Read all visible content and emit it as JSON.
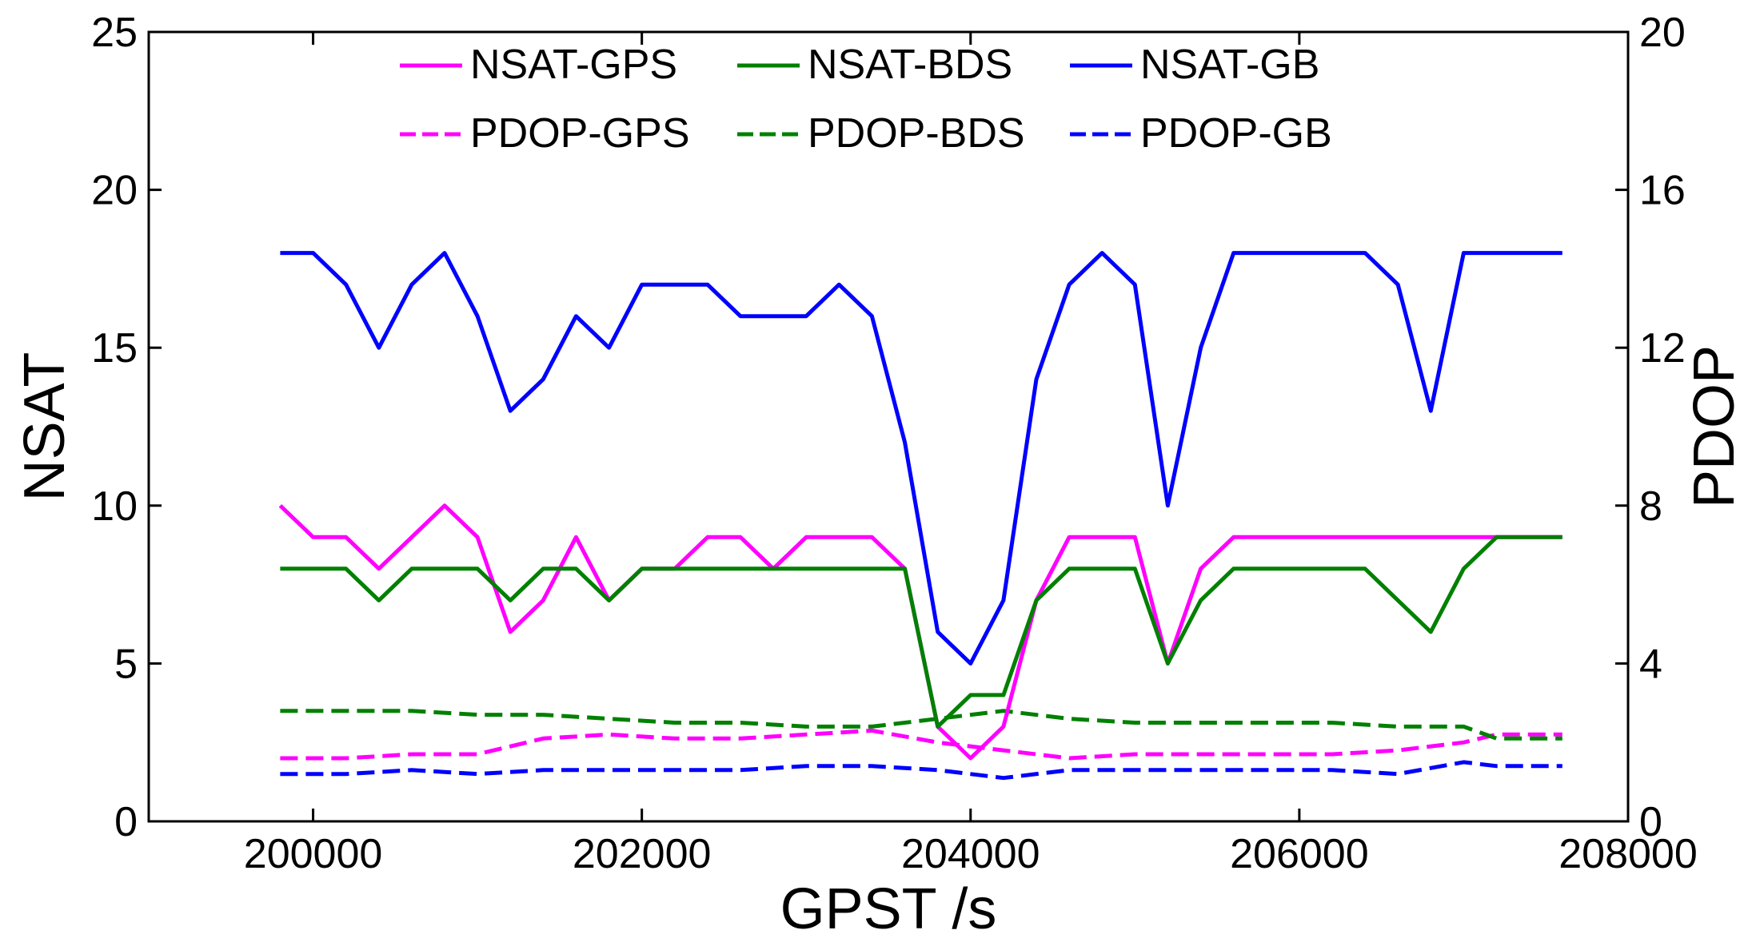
{
  "chart_data": {
    "type": "line",
    "xlabel": "GPST /s",
    "ylabel_left": "NSAT",
    "ylabel_right": "PDOP",
    "xlim": [
      199000,
      208000
    ],
    "ylim_left": [
      0,
      25
    ],
    "ylim_right": [
      0,
      20
    ],
    "x_ticks": [
      200000,
      202000,
      204000,
      206000,
      208000
    ],
    "y_left_ticks": [
      0,
      5,
      10,
      15,
      20,
      25
    ],
    "y_right_ticks": [
      0,
      4,
      8,
      12,
      16,
      20
    ],
    "grid": false,
    "legend_position": "top-center",
    "series": [
      {
        "name": "NSAT-GPS",
        "axis": "left",
        "style": "solid",
        "color": "#ff00ff",
        "x": [
          199800,
          200000,
          200200,
          200400,
          200600,
          200800,
          201000,
          201200,
          201400,
          201600,
          201800,
          202000,
          202200,
          202400,
          202600,
          202800,
          203000,
          203200,
          203400,
          203600,
          203800,
          204000,
          204200,
          204400,
          204600,
          204800,
          205000,
          205200,
          205400,
          205600,
          205800,
          206000,
          206200,
          206400,
          206600,
          206800,
          207000,
          207200,
          207400,
          207600
        ],
        "values": [
          10,
          9,
          9,
          8,
          9,
          10,
          9,
          6,
          7,
          9,
          7,
          8,
          8,
          9,
          9,
          8,
          9,
          9,
          9,
          8,
          3,
          2,
          3,
          7,
          9,
          9,
          9,
          5,
          8,
          9,
          9,
          9,
          9,
          9,
          9,
          9,
          9,
          9,
          9,
          9
        ]
      },
      {
        "name": "NSAT-BDS",
        "axis": "left",
        "style": "solid",
        "color": "#008000",
        "x": [
          199800,
          200000,
          200200,
          200400,
          200600,
          200800,
          201000,
          201200,
          201400,
          201600,
          201800,
          202000,
          202200,
          202400,
          202600,
          202800,
          203000,
          203200,
          203400,
          203600,
          203800,
          204000,
          204200,
          204400,
          204600,
          204800,
          205000,
          205200,
          205400,
          205600,
          205800,
          206000,
          206200,
          206400,
          206600,
          206800,
          207000,
          207200,
          207400,
          207600
        ],
        "values": [
          8,
          8,
          8,
          7,
          8,
          8,
          8,
          7,
          8,
          8,
          7,
          8,
          8,
          8,
          8,
          8,
          8,
          8,
          8,
          8,
          3,
          4,
          4,
          7,
          8,
          8,
          8,
          5,
          7,
          8,
          8,
          8,
          8,
          8,
          7,
          6,
          8,
          9,
          9,
          9
        ]
      },
      {
        "name": "NSAT-GB",
        "axis": "left",
        "style": "solid",
        "color": "#0000ff",
        "x": [
          199800,
          200000,
          200200,
          200400,
          200600,
          200800,
          201000,
          201200,
          201400,
          201600,
          201800,
          202000,
          202200,
          202400,
          202600,
          202800,
          203000,
          203200,
          203400,
          203600,
          203800,
          204000,
          204200,
          204400,
          204600,
          204800,
          205000,
          205200,
          205400,
          205600,
          205800,
          206000,
          206200,
          206400,
          206600,
          206800,
          207000,
          207200,
          207400,
          207600
        ],
        "values": [
          18,
          18,
          17,
          15,
          17,
          18,
          16,
          13,
          14,
          16,
          15,
          17,
          17,
          17,
          16,
          16,
          16,
          17,
          16,
          12,
          6,
          5,
          7,
          14,
          17,
          18,
          17,
          10,
          15,
          18,
          18,
          18,
          18,
          18,
          17,
          13,
          18,
          18,
          18,
          18
        ]
      },
      {
        "name": "PDOP-GPS",
        "axis": "right",
        "style": "dashed",
        "color": "#ff00ff",
        "x": [
          199800,
          200200,
          200600,
          201000,
          201400,
          201800,
          202200,
          202600,
          203000,
          203400,
          203800,
          204200,
          204600,
          205000,
          205400,
          205800,
          206200,
          206600,
          207000,
          207200,
          207400,
          207600
        ],
        "values": [
          1.6,
          1.6,
          1.7,
          1.7,
          2.1,
          2.2,
          2.1,
          2.1,
          2.2,
          2.3,
          2.0,
          1.8,
          1.6,
          1.7,
          1.7,
          1.7,
          1.7,
          1.8,
          2.0,
          2.2,
          2.2,
          2.2
        ]
      },
      {
        "name": "PDOP-BDS",
        "axis": "right",
        "style": "dashed",
        "color": "#008000",
        "x": [
          199800,
          200200,
          200600,
          201000,
          201400,
          201800,
          202200,
          202600,
          203000,
          203400,
          203800,
          204200,
          204600,
          205000,
          205400,
          205800,
          206200,
          206600,
          207000,
          207200,
          207400,
          207600
        ],
        "values": [
          2.8,
          2.8,
          2.8,
          2.7,
          2.7,
          2.6,
          2.5,
          2.5,
          2.4,
          2.4,
          2.6,
          2.8,
          2.6,
          2.5,
          2.5,
          2.5,
          2.5,
          2.4,
          2.4,
          2.1,
          2.1,
          2.1
        ]
      },
      {
        "name": "PDOP-GB",
        "axis": "right",
        "style": "dashed",
        "color": "#0000ff",
        "x": [
          199800,
          200200,
          200600,
          201000,
          201400,
          201800,
          202200,
          202600,
          203000,
          203400,
          203800,
          204200,
          204600,
          205000,
          205400,
          205800,
          206200,
          206600,
          207000,
          207200,
          207400,
          207600
        ],
        "values": [
          1.2,
          1.2,
          1.3,
          1.2,
          1.3,
          1.3,
          1.3,
          1.3,
          1.4,
          1.4,
          1.3,
          1.1,
          1.3,
          1.3,
          1.3,
          1.3,
          1.3,
          1.2,
          1.5,
          1.4,
          1.4,
          1.4
        ]
      }
    ]
  }
}
